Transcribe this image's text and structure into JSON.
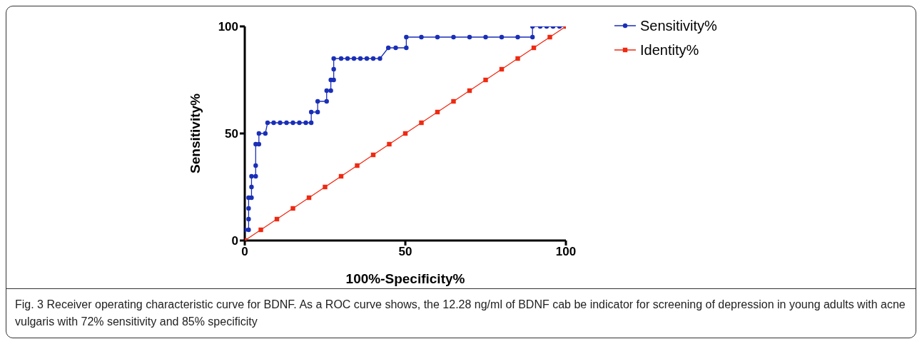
{
  "chart_data": {
    "type": "line",
    "xlabel": "100%-Specificity%",
    "ylabel": "Sensitivity%",
    "xlim": [
      0,
      100
    ],
    "xticks": [
      0,
      50,
      100
    ],
    "ylim": [
      0,
      100
    ],
    "yticks": [
      0,
      50,
      100
    ],
    "grid": false,
    "legend": "top right",
    "series": [
      {
        "name": "Sensitivity%",
        "color": "#1a2fb8",
        "marker": "circle",
        "x": [
          0,
          0,
          1.2,
          1.2,
          1.2,
          1.2,
          2.1,
          2.1,
          2.1,
          3.4,
          3.4,
          3.4,
          4.4,
          4.4,
          6.4,
          7.1,
          9,
          11,
          13,
          15,
          17,
          19,
          20.7,
          20.7,
          22.7,
          22.7,
          25.5,
          25.5,
          26.8,
          26.8,
          27.7,
          27.7,
          27.7,
          30,
          32,
          34,
          36,
          38,
          40,
          42.1,
          44.7,
          47,
          50.3,
          50.3,
          55,
          60,
          65,
          70,
          75,
          80,
          85,
          89.6,
          89.6,
          92,
          94,
          96,
          98,
          100
        ],
        "values": [
          0,
          5,
          5,
          10,
          15,
          20,
          20,
          25,
          30,
          30,
          35,
          45,
          45,
          50,
          50,
          55,
          55,
          55,
          55,
          55,
          55,
          55,
          55,
          60,
          60,
          65,
          65,
          70,
          70,
          75,
          75,
          80,
          85,
          85,
          85,
          85,
          85,
          85,
          85,
          85,
          90,
          90,
          90,
          95,
          95,
          95,
          95,
          95,
          95,
          95,
          95,
          95,
          100,
          100,
          100,
          100,
          100,
          100
        ]
      },
      {
        "name": "Identity%",
        "color": "#ee2a12",
        "marker": "square",
        "x": [
          0,
          5,
          10,
          15,
          20,
          25,
          30,
          35,
          40,
          45,
          50,
          55,
          60,
          65,
          70,
          75,
          80,
          85,
          90,
          95,
          100
        ],
        "values": [
          0,
          5,
          10,
          15,
          20,
          25,
          30,
          35,
          40,
          45,
          50,
          55,
          60,
          65,
          70,
          75,
          80,
          85,
          90,
          95,
          100
        ]
      }
    ],
    "annotations": [
      "Fig. 3 Receiver operating characteristic curve for BDNF. As a ROC curve shows, the 12.28 ng/ml of BDNF cab be indicator for screening of depression in young adults with acne vulgaris with 72% sensitivity and 85% specificity"
    ]
  }
}
